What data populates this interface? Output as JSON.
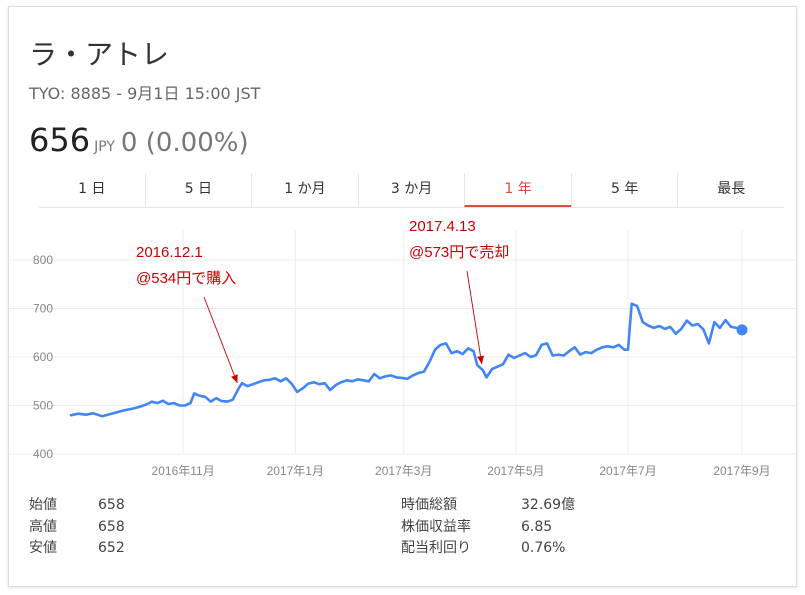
{
  "header": {
    "title": "ラ・アトレ",
    "subtitle": "TYO: 8885 - 9月1日 15:00 JST",
    "price": "656",
    "currency": "JPY",
    "change": "0 (0.00%)"
  },
  "tabs": [
    {
      "label": "1 日"
    },
    {
      "label": "5 日"
    },
    {
      "label": "1 か月"
    },
    {
      "label": "3 か月"
    },
    {
      "label": "1 年",
      "active": true
    },
    {
      "label": "5 年"
    },
    {
      "label": "最長"
    }
  ],
  "stats_left": [
    {
      "label": "始値",
      "value": "658"
    },
    {
      "label": "高値",
      "value": "658"
    },
    {
      "label": "安値",
      "value": "652"
    }
  ],
  "stats_right": [
    {
      "label": "時価総額",
      "value": "32.69億"
    },
    {
      "label": "株価収益率",
      "value": "6.85"
    },
    {
      "label": "配当利回り",
      "value": "0.76%"
    }
  ],
  "chart_data": {
    "type": "line",
    "x_start": "2016-09-01",
    "x_end": "2017-09-01",
    "x_tick_labels": [
      {
        "date": "2016-11-01",
        "label": "2016年11月"
      },
      {
        "date": "2017-01-01",
        "label": "2017年1月"
      },
      {
        "date": "2017-03-01",
        "label": "2017年3月"
      },
      {
        "date": "2017-05-01",
        "label": "2017年5月"
      },
      {
        "date": "2017-07-01",
        "label": "2017年7月"
      },
      {
        "date": "2017-09-01",
        "label": "2017年9月"
      }
    ],
    "ylim": [
      400,
      800
    ],
    "yticks": [
      400,
      500,
      600,
      700,
      800
    ],
    "grid": true,
    "line_color": "#4285f4",
    "series": [
      {
        "name": "",
        "points": [
          [
            "2016-09-01",
            480
          ],
          [
            "2016-09-05",
            483
          ],
          [
            "2016-09-09",
            481
          ],
          [
            "2016-09-13",
            484
          ],
          [
            "2016-09-18",
            478
          ],
          [
            "2016-09-22",
            482
          ],
          [
            "2016-09-26",
            486
          ],
          [
            "2016-09-30",
            490
          ],
          [
            "2016-10-04",
            493
          ],
          [
            "2016-10-08",
            497
          ],
          [
            "2016-10-12",
            502
          ],
          [
            "2016-10-15",
            508
          ],
          [
            "2016-10-18",
            505
          ],
          [
            "2016-10-21",
            510
          ],
          [
            "2016-10-24",
            503
          ],
          [
            "2016-10-27",
            505
          ],
          [
            "2016-10-30",
            500
          ],
          [
            "2016-11-02",
            500
          ],
          [
            "2016-11-05",
            505
          ],
          [
            "2016-11-07",
            525
          ],
          [
            "2016-11-10",
            520
          ],
          [
            "2016-11-13",
            518
          ],
          [
            "2016-11-16",
            508
          ],
          [
            "2016-11-19",
            515
          ],
          [
            "2016-11-22",
            509
          ],
          [
            "2016-11-25",
            508
          ],
          [
            "2016-11-28",
            512
          ],
          [
            "2016-12-01",
            534
          ],
          [
            "2016-12-03",
            546
          ],
          [
            "2016-12-06",
            540
          ],
          [
            "2016-12-09",
            544
          ],
          [
            "2016-12-12",
            548
          ],
          [
            "2016-12-15",
            552
          ],
          [
            "2016-12-18",
            553
          ],
          [
            "2016-12-21",
            556
          ],
          [
            "2016-12-24",
            550
          ],
          [
            "2016-12-27",
            556
          ],
          [
            "2016-12-30",
            545
          ],
          [
            "2017-01-02",
            528
          ],
          [
            "2017-01-05",
            535
          ],
          [
            "2017-01-08",
            545
          ],
          [
            "2017-01-11",
            548
          ],
          [
            "2017-01-14",
            544
          ],
          [
            "2017-01-17",
            546
          ],
          [
            "2017-01-20",
            532
          ],
          [
            "2017-01-23",
            542
          ],
          [
            "2017-01-26",
            548
          ],
          [
            "2017-01-29",
            552
          ],
          [
            "2017-02-01",
            550
          ],
          [
            "2017-02-04",
            554
          ],
          [
            "2017-02-07",
            552
          ],
          [
            "2017-02-10",
            550
          ],
          [
            "2017-02-13",
            565
          ],
          [
            "2017-02-16",
            556
          ],
          [
            "2017-02-19",
            560
          ],
          [
            "2017-02-22",
            562
          ],
          [
            "2017-02-25",
            558
          ],
          [
            "2017-02-28",
            557
          ],
          [
            "2017-03-03",
            555
          ],
          [
            "2017-03-06",
            562
          ],
          [
            "2017-03-09",
            567
          ],
          [
            "2017-03-12",
            570
          ],
          [
            "2017-03-15",
            590
          ],
          [
            "2017-03-18",
            615
          ],
          [
            "2017-03-21",
            625
          ],
          [
            "2017-03-24",
            628
          ],
          [
            "2017-03-27",
            608
          ],
          [
            "2017-03-30",
            612
          ],
          [
            "2017-04-02",
            606
          ],
          [
            "2017-04-05",
            618
          ],
          [
            "2017-04-08",
            612
          ],
          [
            "2017-04-10",
            583
          ],
          [
            "2017-04-13",
            573
          ],
          [
            "2017-04-15",
            558
          ],
          [
            "2017-04-18",
            575
          ],
          [
            "2017-04-21",
            580
          ],
          [
            "2017-04-24",
            585
          ],
          [
            "2017-04-27",
            605
          ],
          [
            "2017-04-30",
            598
          ],
          [
            "2017-05-03",
            603
          ],
          [
            "2017-05-06",
            608
          ],
          [
            "2017-05-09",
            600
          ],
          [
            "2017-05-12",
            604
          ],
          [
            "2017-05-15",
            625
          ],
          [
            "2017-05-18",
            628
          ],
          [
            "2017-05-21",
            603
          ],
          [
            "2017-05-24",
            605
          ],
          [
            "2017-05-27",
            603
          ],
          [
            "2017-05-30",
            612
          ],
          [
            "2017-06-02",
            620
          ],
          [
            "2017-06-05",
            605
          ],
          [
            "2017-06-08",
            610
          ],
          [
            "2017-06-11",
            608
          ],
          [
            "2017-06-14",
            615
          ],
          [
            "2017-06-17",
            620
          ],
          [
            "2017-06-20",
            622
          ],
          [
            "2017-06-23",
            620
          ],
          [
            "2017-06-26",
            625
          ],
          [
            "2017-06-29",
            615
          ],
          [
            "2017-07-01",
            615
          ],
          [
            "2017-07-03",
            710
          ],
          [
            "2017-07-06",
            705
          ],
          [
            "2017-07-09",
            672
          ],
          [
            "2017-07-12",
            665
          ],
          [
            "2017-07-15",
            660
          ],
          [
            "2017-07-18",
            664
          ],
          [
            "2017-07-21",
            658
          ],
          [
            "2017-07-24",
            662
          ],
          [
            "2017-07-27",
            648
          ],
          [
            "2017-07-30",
            658
          ],
          [
            "2017-08-02",
            675
          ],
          [
            "2017-08-05",
            665
          ],
          [
            "2017-08-08",
            668
          ],
          [
            "2017-08-11",
            657
          ],
          [
            "2017-08-14",
            628
          ],
          [
            "2017-08-17",
            672
          ],
          [
            "2017-08-20",
            660
          ],
          [
            "2017-08-23",
            676
          ],
          [
            "2017-08-26",
            662
          ],
          [
            "2017-08-29",
            660
          ],
          [
            "2017-09-01",
            656
          ]
        ]
      }
    ],
    "annotations": [
      {
        "date_label": "2016.12.1",
        "text": "@534円で購入",
        "x": "2016-12-01",
        "y": 534,
        "color": "#cc0000"
      },
      {
        "date_label": "2017.4.13",
        "text": "@573円で売却",
        "x": "2017-04-13",
        "y": 573,
        "color": "#cc0000"
      }
    ]
  }
}
